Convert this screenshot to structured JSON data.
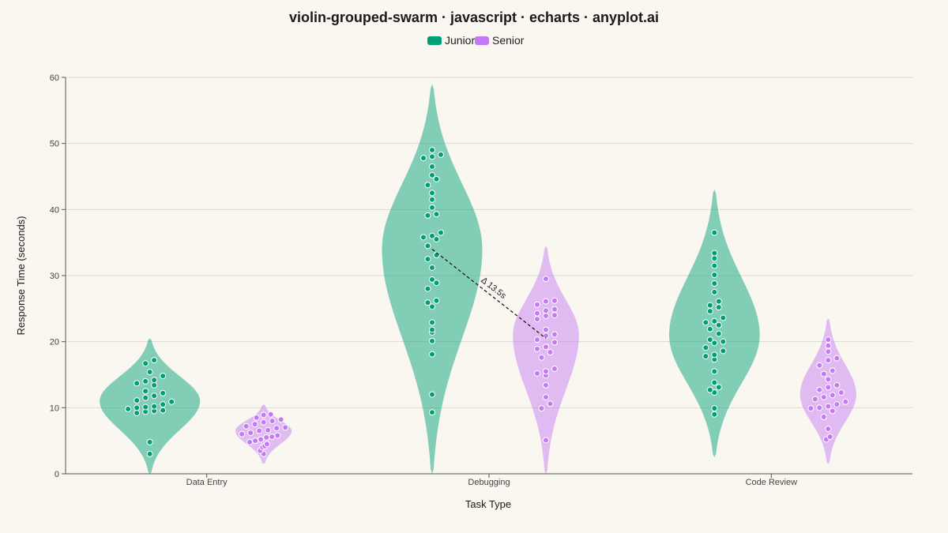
{
  "chart_data": {
    "type": "violin",
    "title": "violin-grouped-swarm · javascript · echarts · anyplot.ai",
    "xlabel": "Task Type",
    "ylabel": "Response Time (seconds)",
    "ylim": [
      0,
      60
    ],
    "yticks": [
      "0",
      "10",
      "20",
      "30",
      "40",
      "50",
      "60"
    ],
    "grid": true,
    "legend_position": "top-center",
    "categories": [
      "Data Entry",
      "Debugging",
      "Code Review"
    ],
    "series": [
      {
        "name": "Junior",
        "color": "#009e73",
        "groups": [
          {
            "violin": {
              "min": 0,
              "max": 20.5,
              "peak": 11,
              "width": 1.0
            },
            "points": [
              3,
              4.8,
              9.2,
              9.4,
              9.5,
              9.6,
              9.8,
              10,
              10.1,
              10.2,
              10.5,
              10.9,
              11.1,
              11.5,
              11.8,
              12.2,
              12.5,
              13.4,
              13.7,
              14,
              14.2,
              14.8,
              15.4,
              16.7,
              17.2
            ]
          },
          {
            "violin": {
              "min": 0,
              "max": 59,
              "peak": 34,
              "width": 1.0
            },
            "points": [
              9.3,
              12,
              18.1,
              20.1,
              21.4,
              21.8,
              22.9,
              25.3,
              25.9,
              26.2,
              28.9,
              28,
              29.4,
              31.2,
              33.1,
              32.5,
              34.5,
              35.5,
              35.8,
              36,
              36.5,
              39.1,
              39.3,
              40.3,
              41.5,
              42.5,
              43.7,
              44.6,
              45.2,
              46.5,
              47.8,
              48,
              48.3,
              49
            ]
          },
          {
            "violin": {
              "min": 2.5,
              "max": 43,
              "peak": 21,
              "width": 0.9
            },
            "points": [
              9,
              9.9,
              12.3,
              12.7,
              13.1,
              13.8,
              15.5,
              17.3,
              17.8,
              18,
              18.6,
              19.1,
              19.8,
              20,
              20.3,
              21.2,
              21.9,
              22.5,
              22.9,
              23.1,
              23.6,
              24.6,
              25.2,
              25.5,
              26.1,
              27.5,
              28.8,
              30.1,
              31.5,
              32.6,
              33.4,
              36.5
            ]
          }
        ]
      },
      {
        "name": "Senior",
        "color": "#c47af2",
        "groups": [
          {
            "violin": {
              "min": 1.5,
              "max": 10.5,
              "peak": 6.5,
              "width": 0.55
            },
            "points": [
              3,
              3.5,
              4,
              4.2,
              4.5,
              4.8,
              5,
              5.2,
              5.5,
              5.6,
              5.8,
              6,
              6.2,
              6.5,
              6.6,
              6.9,
              7,
              7.2,
              7.5,
              7.8,
              8,
              8.2,
              8.5,
              8.9,
              9
            ]
          },
          {
            "violin": {
              "min": 0,
              "max": 34.5,
              "peak": 21,
              "width": 0.65
            },
            "points": [
              5.1,
              9.9,
              10.6,
              11.6,
              13.4,
              14.9,
              15.2,
              15.5,
              15.9,
              17.6,
              18.4,
              18.9,
              19.2,
              19.9,
              20.3,
              20.9,
              21.1,
              21.8,
              23.4,
              23.9,
              24,
              24.3,
              24.7,
              24.9,
              25.6,
              26.1,
              26.2,
              29.5
            ]
          },
          {
            "violin": {
              "min": 1.5,
              "max": 23.5,
              "peak": 12,
              "width": 0.55
            },
            "points": [
              5.2,
              5.6,
              6.8,
              8.6,
              9.5,
              9.9,
              10,
              10.2,
              10.5,
              10.9,
              11.3,
              11.6,
              11.9,
              12.3,
              12.7,
              13.1,
              13.4,
              14.3,
              15.1,
              15.6,
              16.4,
              17.2,
              17.5,
              18.5,
              19.4,
              20.3
            ]
          }
        ]
      }
    ],
    "annotation": {
      "text": "Δ 13.5s",
      "category": "Debugging",
      "from": {
        "series": "Junior",
        "y": 34.0
      },
      "to": {
        "series": "Senior",
        "y": 20.5
      }
    }
  }
}
